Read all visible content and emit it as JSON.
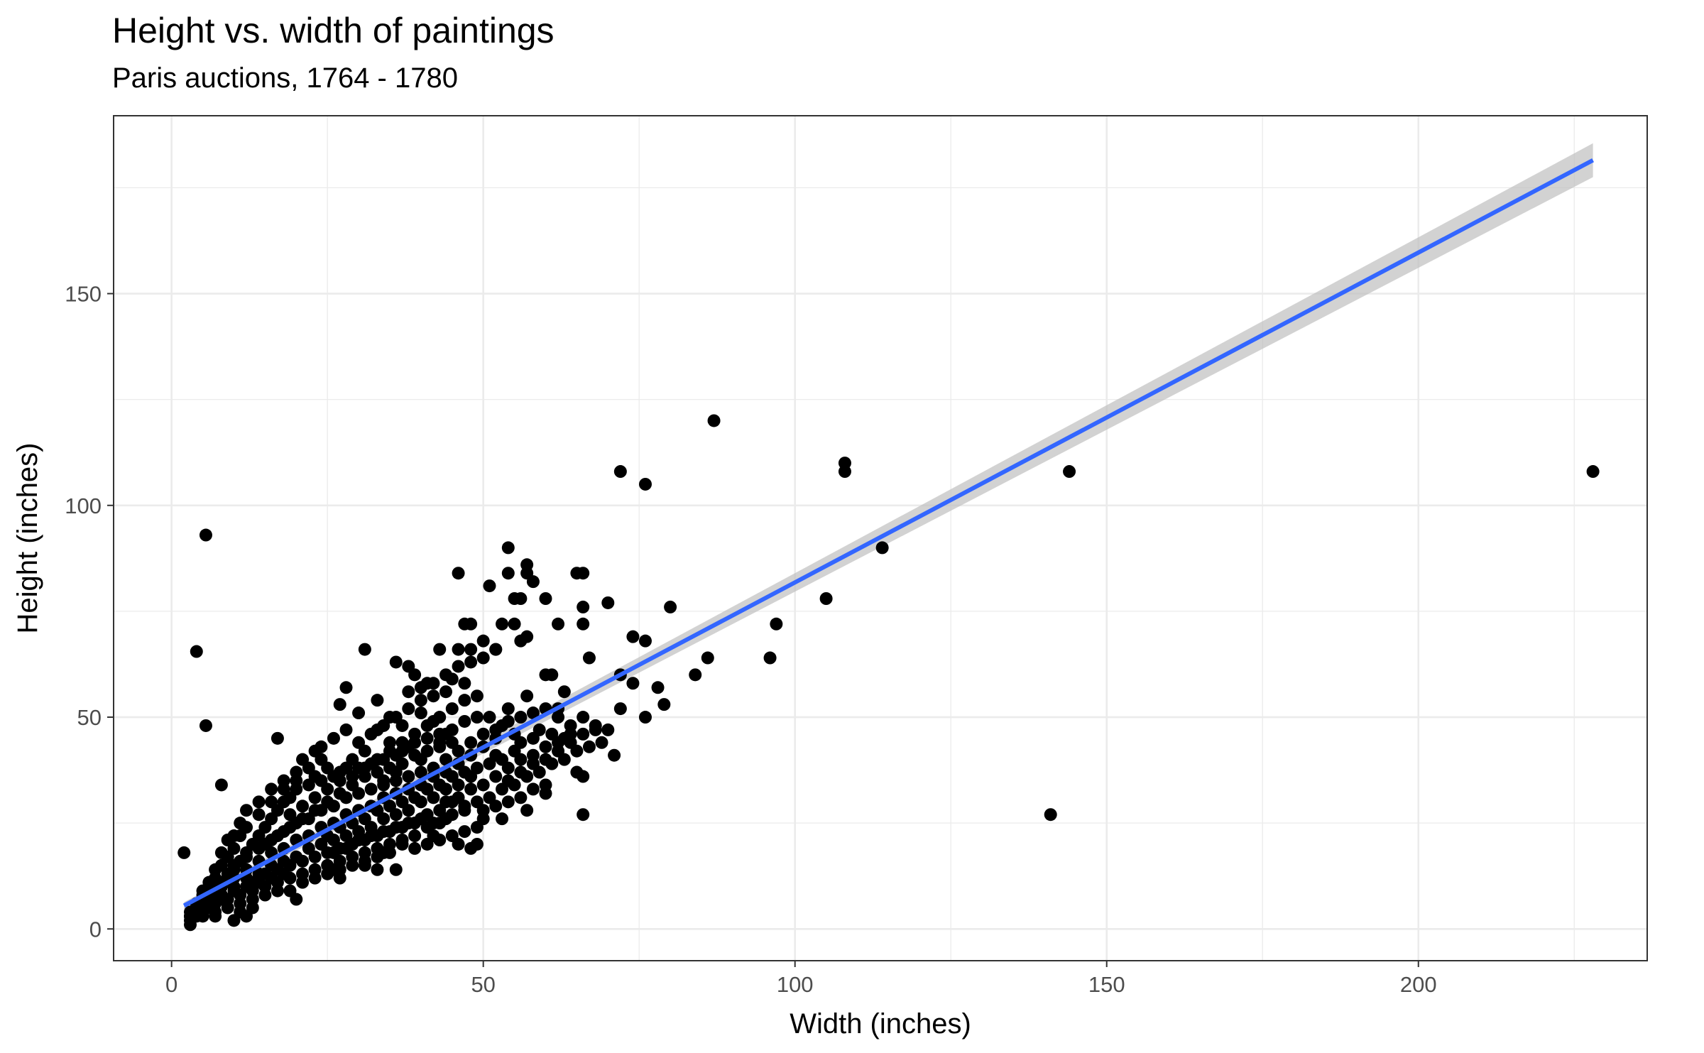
{
  "chart_data": {
    "type": "scatter",
    "title": "Height vs. width of paintings",
    "subtitle": "Paris auctions, 1764 - 1780",
    "xlabel": "Width (inches)",
    "ylabel": "Height (inches)",
    "xlim": [
      -9.3,
      236.7
    ],
    "ylim": [
      -7.5,
      192
    ],
    "x_ticks": [
      0,
      50,
      100,
      150,
      200
    ],
    "y_ticks": [
      0,
      50,
      100,
      150
    ],
    "x_tick_labels": [
      "0",
      "50",
      "100",
      "150",
      "200"
    ],
    "y_tick_labels": [
      "0",
      "50",
      "100",
      "150"
    ],
    "grid": true,
    "legend": "none",
    "point_color": "#000000",
    "line_color": "#3366FF",
    "band_color": "#BFBFBF",
    "smooth": {
      "method": "lm",
      "x": [
        2,
        228
      ],
      "y": [
        5.5,
        181.5
      ],
      "band_halfwidth_start": 0.8,
      "band_halfwidth_end": 4.0
    },
    "points": [
      [
        87,
        120
      ],
      [
        108,
        110
      ],
      [
        108,
        108
      ],
      [
        144,
        108
      ],
      [
        72,
        108
      ],
      [
        76,
        105
      ],
      [
        228,
        108
      ],
      [
        5.5,
        93
      ],
      [
        114,
        90
      ],
      [
        54,
        90
      ],
      [
        105,
        78
      ],
      [
        96,
        64
      ],
      [
        97,
        72
      ],
      [
        86,
        64
      ],
      [
        84,
        60
      ],
      [
        141,
        27
      ],
      [
        4,
        65.5
      ],
      [
        5.5,
        48
      ],
      [
        2,
        18
      ],
      [
        8,
        34
      ],
      [
        17,
        45
      ],
      [
        66,
        27
      ],
      [
        80,
        76
      ],
      [
        70,
        77
      ],
      [
        66,
        84
      ],
      [
        65,
        84
      ],
      [
        46,
        84
      ],
      [
        57,
        86
      ],
      [
        57,
        84
      ],
      [
        58,
        82
      ],
      [
        54,
        84
      ],
      [
        51,
        81
      ],
      [
        56,
        78
      ],
      [
        55,
        78
      ],
      [
        60,
        78
      ],
      [
        66,
        76
      ],
      [
        66,
        72
      ],
      [
        74,
        69
      ],
      [
        76,
        68
      ],
      [
        53,
        72
      ],
      [
        47,
        72
      ],
      [
        48,
        72
      ],
      [
        55,
        72
      ],
      [
        62,
        72
      ],
      [
        57,
        69
      ],
      [
        50,
        68
      ],
      [
        56,
        68
      ],
      [
        46,
        66
      ],
      [
        52,
        66
      ],
      [
        31,
        66
      ],
      [
        43,
        66
      ],
      [
        48,
        66
      ],
      [
        72,
        60
      ],
      [
        78,
        57
      ],
      [
        79,
        53
      ],
      [
        74,
        58
      ],
      [
        76,
        50
      ],
      [
        72,
        52
      ],
      [
        70,
        47
      ],
      [
        71,
        41
      ],
      [
        67,
        64
      ],
      [
        61,
        60
      ],
      [
        60,
        60
      ],
      [
        63,
        56
      ],
      [
        36,
        63
      ],
      [
        38,
        62
      ],
      [
        39,
        60
      ],
      [
        41,
        58
      ],
      [
        45,
        59
      ],
      [
        47,
        58
      ],
      [
        54,
        52
      ],
      [
        57,
        55
      ],
      [
        62,
        52
      ],
      [
        66,
        50
      ],
      [
        68,
        48
      ],
      [
        65,
        37
      ],
      [
        66,
        36
      ],
      [
        60,
        32
      ],
      [
        52,
        41
      ],
      [
        45,
        30
      ],
      [
        46,
        20
      ],
      [
        48,
        19
      ],
      [
        49,
        20
      ],
      [
        50,
        26
      ],
      [
        47,
        29
      ],
      [
        42,
        22
      ],
      [
        37,
        20
      ],
      [
        33,
        14
      ],
      [
        36,
        14
      ],
      [
        34,
        18
      ],
      [
        31,
        15
      ],
      [
        26,
        14
      ],
      [
        27,
        12
      ],
      [
        20,
        7
      ],
      [
        17,
        9
      ],
      [
        13,
        5
      ],
      [
        10,
        2
      ],
      [
        11,
        4
      ],
      [
        12,
        3
      ],
      [
        7,
        3
      ],
      [
        5,
        3
      ],
      [
        3,
        2
      ],
      [
        3,
        1
      ],
      [
        4,
        4
      ],
      [
        28,
        57
      ],
      [
        27,
        53
      ],
      [
        30,
        51
      ],
      [
        33,
        54
      ],
      [
        33,
        47
      ],
      [
        35,
        50
      ],
      [
        37,
        48
      ],
      [
        40,
        51
      ],
      [
        42,
        49
      ],
      [
        44,
        46
      ],
      [
        43,
        44
      ],
      [
        40,
        40
      ],
      [
        37,
        42
      ],
      [
        35,
        44
      ],
      [
        31,
        42
      ],
      [
        29,
        40
      ],
      [
        24,
        43
      ],
      [
        23,
        42
      ],
      [
        25,
        38
      ],
      [
        21,
        40
      ],
      [
        20,
        37
      ],
      [
        18,
        35
      ],
      [
        16,
        33
      ],
      [
        14,
        30
      ],
      [
        12,
        28
      ],
      [
        11,
        25
      ],
      [
        10,
        22
      ],
      [
        9,
        21
      ],
      [
        8,
        18
      ],
      [
        7,
        14
      ],
      [
        6,
        11
      ],
      [
        5,
        9
      ],
      [
        5,
        7
      ],
      [
        6,
        6
      ],
      [
        7,
        8
      ],
      [
        8,
        10
      ],
      [
        9,
        12
      ],
      [
        10,
        14
      ],
      [
        11,
        16
      ],
      [
        12,
        18
      ],
      [
        13,
        20
      ],
      [
        14,
        22
      ],
      [
        15,
        24
      ],
      [
        16,
        26
      ],
      [
        17,
        28
      ],
      [
        18,
        30
      ],
      [
        19,
        31
      ],
      [
        20,
        33
      ],
      [
        22,
        34
      ],
      [
        23,
        36
      ],
      [
        24,
        35
      ],
      [
        26,
        36
      ],
      [
        27,
        37
      ],
      [
        28,
        38
      ],
      [
        30,
        38
      ],
      [
        32,
        39
      ],
      [
        34,
        40
      ],
      [
        36,
        41
      ],
      [
        38,
        43
      ],
      [
        39,
        44
      ],
      [
        41,
        45
      ],
      [
        43,
        46
      ],
      [
        45,
        47
      ],
      [
        47,
        49
      ],
      [
        49,
        50
      ],
      [
        51,
        50
      ],
      [
        53,
        48
      ],
      [
        55,
        46
      ],
      [
        56,
        44
      ],
      [
        58,
        45
      ],
      [
        59,
        47
      ],
      [
        61,
        46
      ],
      [
        63,
        45
      ],
      [
        64,
        46
      ],
      [
        52,
        45
      ],
      [
        50,
        43
      ],
      [
        48,
        41
      ],
      [
        46,
        39
      ],
      [
        44,
        37
      ],
      [
        42,
        36
      ],
      [
        40,
        34
      ],
      [
        38,
        33
      ],
      [
        36,
        32
      ],
      [
        34,
        31
      ],
      [
        32,
        29
      ],
      [
        30,
        28
      ],
      [
        28,
        27
      ],
      [
        26,
        25
      ],
      [
        24,
        24
      ],
      [
        22,
        22
      ],
      [
        20,
        21
      ],
      [
        18,
        19
      ],
      [
        16,
        18
      ],
      [
        14,
        16
      ],
      [
        12,
        14
      ],
      [
        10,
        12
      ],
      [
        8,
        10
      ],
      [
        6,
        8
      ],
      [
        4,
        6
      ],
      [
        3,
        4
      ],
      [
        5,
        5
      ],
      [
        7,
        6
      ],
      [
        9,
        7
      ],
      [
        11,
        8
      ],
      [
        13,
        9
      ],
      [
        15,
        10
      ],
      [
        17,
        11
      ],
      [
        19,
        12
      ],
      [
        21,
        13
      ],
      [
        23,
        14
      ],
      [
        25,
        15
      ],
      [
        27,
        16
      ],
      [
        29,
        17
      ],
      [
        31,
        18
      ],
      [
        33,
        19
      ],
      [
        35,
        20
      ],
      [
        37,
        21
      ],
      [
        39,
        22
      ],
      [
        41,
        24
      ],
      [
        43,
        25
      ],
      [
        45,
        27
      ],
      [
        47,
        28
      ],
      [
        49,
        30
      ],
      [
        51,
        31
      ],
      [
        53,
        33
      ],
      [
        55,
        34
      ],
      [
        57,
        36
      ],
      [
        59,
        37
      ],
      [
        61,
        39
      ],
      [
        63,
        40
      ],
      [
        65,
        42
      ],
      [
        67,
        43
      ],
      [
        69,
        44
      ],
      [
        54,
        38
      ],
      [
        56,
        40
      ],
      [
        58,
        41
      ],
      [
        60,
        43
      ],
      [
        62,
        44
      ],
      [
        48,
        36
      ],
      [
        46,
        34
      ],
      [
        44,
        33
      ],
      [
        42,
        31
      ],
      [
        40,
        30
      ],
      [
        38,
        28
      ],
      [
        36,
        27
      ],
      [
        34,
        26
      ],
      [
        32,
        24
      ],
      [
        30,
        23
      ],
      [
        28,
        22
      ],
      [
        26,
        21
      ],
      [
        24,
        20
      ],
      [
        22,
        19
      ],
      [
        20,
        17
      ],
      [
        18,
        16
      ],
      [
        16,
        15
      ],
      [
        14,
        13
      ],
      [
        12,
        12
      ],
      [
        10,
        10
      ],
      [
        8,
        8
      ],
      [
        6,
        6
      ],
      [
        4,
        3
      ],
      [
        3,
        3
      ],
      [
        15,
        20
      ],
      [
        17,
        22
      ],
      [
        19,
        24
      ],
      [
        21,
        26
      ],
      [
        23,
        28
      ],
      [
        25,
        30
      ],
      [
        27,
        32
      ],
      [
        29,
        34
      ],
      [
        31,
        36
      ],
      [
        33,
        37
      ],
      [
        35,
        38
      ],
      [
        37,
        39
      ],
      [
        39,
        41
      ],
      [
        41,
        42
      ],
      [
        43,
        43
      ],
      [
        45,
        44
      ],
      [
        19,
        27
      ],
      [
        21,
        29
      ],
      [
        23,
        31
      ],
      [
        25,
        33
      ],
      [
        27,
        35
      ],
      [
        29,
        36
      ],
      [
        31,
        38
      ],
      [
        33,
        40
      ],
      [
        35,
        42
      ],
      [
        37,
        44
      ],
      [
        39,
        46
      ],
      [
        41,
        48
      ],
      [
        43,
        50
      ],
      [
        45,
        52
      ],
      [
        47,
        54
      ],
      [
        49,
        55
      ],
      [
        34,
        34
      ],
      [
        36,
        35
      ],
      [
        38,
        36
      ],
      [
        40,
        37
      ],
      [
        42,
        38
      ],
      [
        44,
        40
      ],
      [
        46,
        42
      ],
      [
        48,
        44
      ],
      [
        50,
        46
      ],
      [
        52,
        47
      ],
      [
        54,
        49
      ],
      [
        56,
        50
      ],
      [
        58,
        51
      ],
      [
        60,
        52
      ],
      [
        62,
        50
      ],
      [
        64,
        48
      ],
      [
        25,
        22
      ],
      [
        27,
        24
      ],
      [
        29,
        25
      ],
      [
        31,
        26
      ],
      [
        33,
        28
      ],
      [
        35,
        29
      ],
      [
        37,
        30
      ],
      [
        39,
        31
      ],
      [
        41,
        33
      ],
      [
        43,
        34
      ],
      [
        45,
        36
      ],
      [
        47,
        37
      ],
      [
        49,
        38
      ],
      [
        51,
        39
      ],
      [
        53,
        40
      ],
      [
        55,
        42
      ],
      [
        22,
        26
      ],
      [
        24,
        28
      ],
      [
        26,
        29
      ],
      [
        28,
        31
      ],
      [
        30,
        32
      ],
      [
        32,
        33
      ],
      [
        34,
        35
      ],
      [
        36,
        37
      ],
      [
        20,
        25
      ],
      [
        18,
        23
      ],
      [
        16,
        21
      ],
      [
        14,
        19
      ],
      [
        12,
        17
      ],
      [
        10,
        15
      ],
      [
        9,
        13
      ],
      [
        8,
        11
      ],
      [
        7,
        10
      ],
      [
        6,
        9
      ],
      [
        5,
        8
      ],
      [
        4,
        5
      ],
      [
        13,
        11
      ],
      [
        15,
        13
      ],
      [
        17,
        14
      ],
      [
        19,
        15
      ],
      [
        21,
        16
      ],
      [
        23,
        17
      ],
      [
        25,
        18
      ],
      [
        27,
        19
      ],
      [
        29,
        20
      ],
      [
        31,
        21
      ],
      [
        33,
        22
      ],
      [
        35,
        23
      ],
      [
        37,
        24
      ],
      [
        39,
        25
      ],
      [
        41,
        27
      ],
      [
        43,
        28
      ],
      [
        44,
        30
      ],
      [
        46,
        31
      ],
      [
        48,
        33
      ],
      [
        50,
        34
      ],
      [
        52,
        36
      ],
      [
        54,
        35
      ],
      [
        56,
        37
      ],
      [
        58,
        39
      ],
      [
        60,
        40
      ],
      [
        62,
        42
      ],
      [
        64,
        44
      ],
      [
        66,
        46
      ],
      [
        68,
        47
      ],
      [
        30,
        44
      ],
      [
        32,
        46
      ],
      [
        34,
        48
      ],
      [
        36,
        50
      ],
      [
        38,
        52
      ],
      [
        40,
        54
      ],
      [
        42,
        55
      ],
      [
        44,
        56
      ],
      [
        28,
        47
      ],
      [
        26,
        45
      ],
      [
        24,
        40
      ],
      [
        22,
        38
      ],
      [
        20,
        35
      ],
      [
        18,
        33
      ],
      [
        16,
        30
      ],
      [
        14,
        27
      ],
      [
        12,
        24
      ],
      [
        11,
        22
      ],
      [
        10,
        19
      ],
      [
        9,
        17
      ],
      [
        8,
        15
      ],
      [
        7,
        12
      ],
      [
        6,
        10
      ],
      [
        5,
        6
      ],
      [
        38,
        56
      ],
      [
        40,
        57
      ],
      [
        42,
        58
      ],
      [
        44,
        60
      ],
      [
        46,
        62
      ],
      [
        48,
        63
      ],
      [
        50,
        64
      ],
      [
        52,
        66
      ],
      [
        26,
        18
      ],
      [
        28,
        19
      ],
      [
        30,
        21
      ],
      [
        32,
        22
      ],
      [
        34,
        23
      ],
      [
        36,
        24
      ],
      [
        38,
        25
      ],
      [
        40,
        26
      ],
      [
        21,
        11
      ],
      [
        23,
        12
      ],
      [
        25,
        13
      ],
      [
        27,
        14
      ],
      [
        29,
        15
      ],
      [
        31,
        16
      ],
      [
        33,
        17
      ],
      [
        35,
        18
      ],
      [
        18,
        13
      ],
      [
        16,
        12
      ],
      [
        14,
        11
      ],
      [
        12,
        10
      ],
      [
        10,
        9
      ],
      [
        8,
        7
      ],
      [
        6,
        5
      ],
      [
        4,
        4
      ],
      [
        19,
        9
      ],
      [
        15,
        8
      ],
      [
        13,
        7
      ],
      [
        11,
        6
      ],
      [
        9,
        5
      ],
      [
        7,
        4
      ],
      [
        5,
        4
      ],
      [
        3,
        3
      ],
      [
        50,
        28
      ],
      [
        52,
        29
      ],
      [
        54,
        30
      ],
      [
        56,
        31
      ],
      [
        58,
        33
      ],
      [
        60,
        34
      ],
      [
        44,
        26
      ],
      [
        42,
        25
      ],
      [
        57,
        28
      ],
      [
        53,
        26
      ],
      [
        49,
        24
      ],
      [
        47,
        23
      ],
      [
        45,
        22
      ],
      [
        43,
        21
      ],
      [
        41,
        20
      ],
      [
        39,
        19
      ]
    ]
  }
}
